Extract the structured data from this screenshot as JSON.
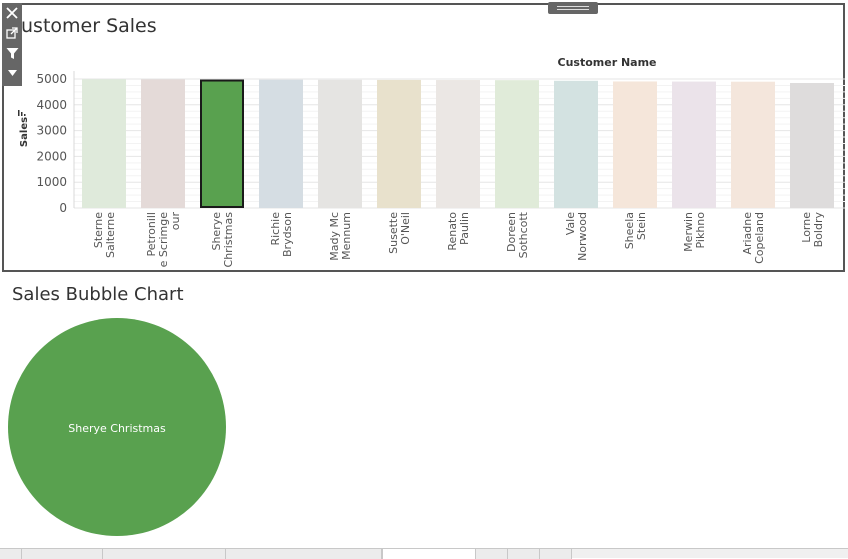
{
  "toolbar": {
    "icons": [
      "close-icon",
      "popout-icon",
      "filter-icon",
      "menu-caret-icon"
    ]
  },
  "colors": {
    "selected_bar": "#59a14f",
    "selected_border": "#1a1a1a",
    "bubble": "#59a14f",
    "bubble_label": "#ffffff"
  },
  "chart_data": [
    {
      "type": "bar",
      "title": "ustomer Sales",
      "header": "Customer Name",
      "ylabel": "Sales",
      "ylim": [
        0,
        5000
      ],
      "yticks": [
        0,
        1000,
        2000,
        3000,
        4000,
        5000
      ],
      "grid": true,
      "categories": [
        [
          "Sterne",
          "Salterne"
        ],
        [
          "Petronill",
          "e Scrimge",
          "our"
        ],
        [
          "Sherye",
          "Christmas"
        ],
        [
          "Richie",
          "Brydson"
        ],
        [
          "Mady Mc",
          "Mennum"
        ],
        [
          "Susette",
          "O'Neil"
        ],
        [
          "Renato",
          "Paulin"
        ],
        [
          "Doreen",
          "Sothcott"
        ],
        [
          "Vale",
          "Norwood"
        ],
        [
          "Sheela",
          "Stein"
        ],
        [
          "Merwin",
          "Pikhno"
        ],
        [
          "Ariadne",
          "Copeland"
        ],
        [
          "Lorne",
          "Boldry"
        ]
      ],
      "values": [
        4990,
        4985,
        4980,
        4975,
        4970,
        4965,
        4960,
        4955,
        4930,
        4905,
        4900,
        4895,
        4845
      ],
      "colors": [
        "#dfeadb",
        "#e4dad8",
        "#59a14f",
        "#d5dde3",
        "#e5e4e2",
        "#e8e1cc",
        "#ebe7e4",
        "#e0ebd9",
        "#d3e2e1",
        "#f5e6da",
        "#ebe3ea",
        "#f4e6dc",
        "#dedcdc"
      ],
      "selected_index": 2
    },
    {
      "type": "scatter",
      "title": "Sales Bubble Chart",
      "points": [
        {
          "label": "Sherye Christmas",
          "size": 4980
        }
      ]
    }
  ]
}
